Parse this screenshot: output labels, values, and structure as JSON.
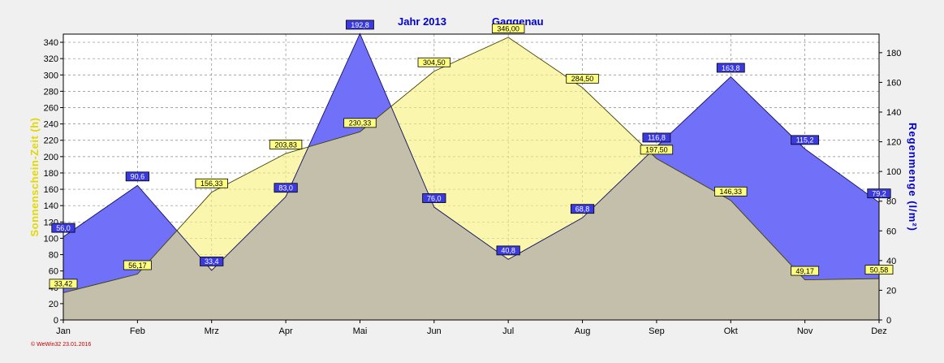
{
  "title": {
    "year": "Jahr  2013",
    "location": "Gaggenau"
  },
  "footer": "© WeWin32  23.01.2016",
  "chart_data": {
    "type": "area",
    "categories": [
      "Jan",
      "Feb",
      "Mrz",
      "Apr",
      "Mai",
      "Jun",
      "Jul",
      "Aug",
      "Sep",
      "Okt",
      "Nov",
      "Dez"
    ],
    "ylabel_left": "Sonnenschein-Zeit  (h)",
    "ylabel_right": "Regenmenge  (l/m²)",
    "ylim_left": [
      0,
      350
    ],
    "yticks_left": [
      0,
      20,
      40,
      60,
      80,
      100,
      120,
      140,
      160,
      180,
      200,
      220,
      240,
      260,
      280,
      300,
      320,
      340
    ],
    "ylim_right": [
      0,
      192.5
    ],
    "yticks_right": [
      0,
      20,
      40,
      60,
      80,
      100,
      120,
      140,
      160,
      180
    ],
    "grid": true,
    "series": [
      {
        "axis": "left",
        "values": [
          33.42,
          56.17,
          156.33,
          203.83,
          230.33,
          304.5,
          346.0,
          284.5,
          197.5,
          146.33,
          49.17,
          50.58
        ],
        "labels": [
          "33,42",
          "56,17",
          "156,33",
          "203,83",
          "230,33",
          "304,50",
          "346,00",
          "284,50",
          "197,50",
          "146,33",
          "49,17",
          "50,58"
        ],
        "color": "#f8f07a"
      },
      {
        "axis": "right",
        "values": [
          56.0,
          90.6,
          33.4,
          83.0,
          192.8,
          76.0,
          40.8,
          68.8,
          116.8,
          163.8,
          115.2,
          79.2
        ],
        "labels": [
          "56,0",
          "90,6",
          "33,4",
          "83,0",
          "192,8",
          "76,0",
          "40,8",
          "68,8",
          "116,8",
          "163,8",
          "115,2",
          "79,2"
        ],
        "color": "#7070f8"
      }
    ]
  }
}
